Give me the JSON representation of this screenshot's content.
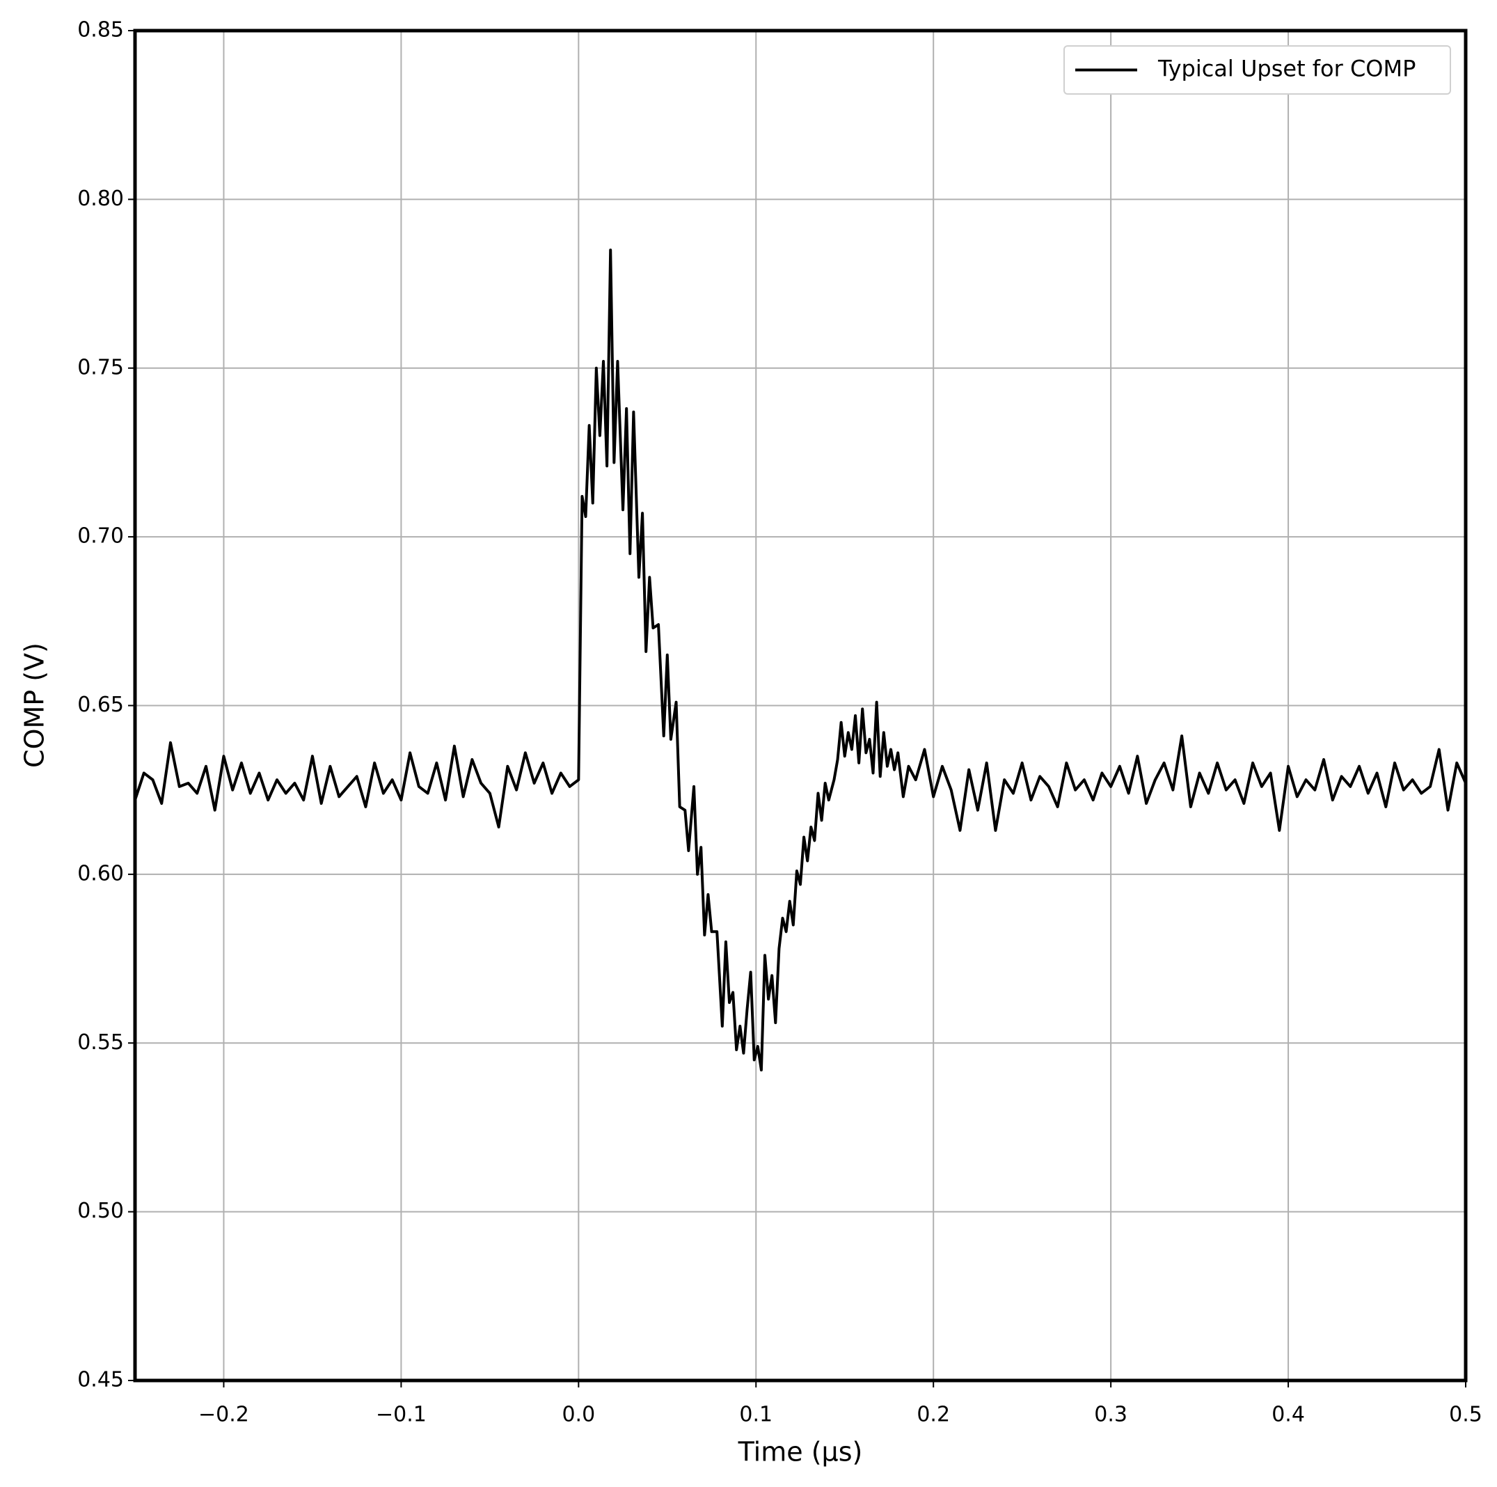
{
  "chart_data": {
    "type": "line",
    "xlabel": "Time (µs)",
    "ylabel": "COMP (V)",
    "xlim": [
      -0.25,
      0.5
    ],
    "xticks": [
      {
        "value": -0.2,
        "label": "−0.2"
      },
      {
        "value": -0.1,
        "label": "−0.1"
      },
      {
        "value": 0,
        "label": "0.0"
      },
      0.1,
      0.2,
      0.3,
      0.4,
      0.5
    ],
    "ylim": [
      0.45,
      0.85
    ],
    "yticks": [
      0.45,
      {
        "value": 0.5,
        "label": "0.50"
      },
      0.55,
      {
        "value": 0.6,
        "label": "0.60"
      },
      0.65,
      {
        "value": 0.7,
        "label": "0.70"
      },
      0.75,
      {
        "value": 0.8,
        "label": "0.80"
      },
      0.85
    ],
    "grid": true,
    "legend": "upper right",
    "x": [
      -0.25,
      -0.245,
      -0.24,
      -0.235,
      -0.23,
      -0.225,
      -0.22,
      -0.215,
      -0.21,
      -0.205,
      -0.2,
      -0.195,
      -0.19,
      -0.185,
      -0.18,
      -0.175,
      -0.17,
      -0.165,
      -0.16,
      -0.155,
      -0.15,
      -0.145,
      -0.14,
      -0.135,
      -0.13,
      -0.125,
      -0.12,
      -0.115,
      -0.11,
      -0.105,
      -0.1,
      -0.095,
      -0.09,
      -0.085,
      -0.08,
      -0.075,
      -0.07,
      -0.065,
      -0.06,
      -0.055,
      -0.05,
      -0.045,
      -0.04,
      -0.035,
      -0.03,
      -0.025,
      -0.02,
      -0.015,
      -0.01,
      -0.005,
      0,
      0.002,
      0.004,
      0.006,
      0.008,
      0.01,
      0.012,
      0.014,
      0.016,
      0.018,
      0.02,
      0.022,
      0.025,
      0.027,
      0.029,
      0.031,
      0.034,
      0.036,
      0.038,
      0.04,
      0.042,
      0.045,
      0.048,
      0.05,
      0.052,
      0.055,
      0.057,
      0.06,
      0.062,
      0.065,
      0.067,
      0.069,
      0.071,
      0.073,
      0.075,
      0.078,
      0.081,
      0.083,
      0.085,
      0.087,
      0.089,
      0.091,
      0.093,
      0.095,
      0.097,
      0.099,
      0.101,
      0.103,
      0.105,
      0.107,
      0.109,
      0.111,
      0.113,
      0.115,
      0.117,
      0.119,
      0.121,
      0.123,
      0.125,
      0.127,
      0.129,
      0.131,
      0.133,
      0.135,
      0.137,
      0.139,
      0.141,
      0.144,
      0.146,
      0.148,
      0.15,
      0.152,
      0.154,
      0.156,
      0.158,
      0.16,
      0.162,
      0.164,
      0.166,
      0.168,
      0.17,
      0.172,
      0.174,
      0.176,
      0.178,
      0.18,
      0.183,
      0.186,
      0.19,
      0.195,
      0.2,
      0.205,
      0.21,
      0.215,
      0.22,
      0.225,
      0.23,
      0.235,
      0.24,
      0.245,
      0.25,
      0.255,
      0.26,
      0.265,
      0.27,
      0.275,
      0.28,
      0.285,
      0.29,
      0.295,
      0.3,
      0.305,
      0.31,
      0.315,
      0.32,
      0.325,
      0.33,
      0.335,
      0.34,
      0.345,
      0.35,
      0.355,
      0.36,
      0.365,
      0.37,
      0.375,
      0.38,
      0.385,
      0.39,
      0.395,
      0.4,
      0.405,
      0.41,
      0.415,
      0.42,
      0.425,
      0.43,
      0.435,
      0.44,
      0.445,
      0.45,
      0.455,
      0.46,
      0.465,
      0.47,
      0.475,
      0.48,
      0.485,
      0.49,
      0.495,
      0.5
    ],
    "series": [
      {
        "name": "Typical Upset for COMP",
        "color": "#000000",
        "values": [
          0.622,
          0.63,
          0.628,
          0.621,
          0.639,
          0.626,
          0.627,
          0.624,
          0.632,
          0.619,
          0.635,
          0.625,
          0.633,
          0.624,
          0.63,
          0.622,
          0.628,
          0.624,
          0.627,
          0.622,
          0.635,
          0.621,
          0.632,
          0.623,
          0.626,
          0.629,
          0.62,
          0.633,
          0.624,
          0.628,
          0.622,
          0.636,
          0.626,
          0.624,
          0.633,
          0.622,
          0.638,
          0.623,
          0.634,
          0.627,
          0.624,
          0.614,
          0.632,
          0.625,
          0.636,
          0.627,
          0.633,
          0.624,
          0.63,
          0.626,
          0.628,
          0.712,
          0.706,
          0.733,
          0.71,
          0.75,
          0.73,
          0.752,
          0.721,
          0.785,
          0.722,
          0.752,
          0.708,
          0.738,
          0.695,
          0.737,
          0.688,
          0.707,
          0.666,
          0.688,
          0.673,
          0.674,
          0.641,
          0.665,
          0.64,
          0.651,
          0.62,
          0.619,
          0.607,
          0.626,
          0.6,
          0.608,
          0.582,
          0.594,
          0.583,
          0.583,
          0.555,
          0.58,
          0.562,
          0.565,
          0.548,
          0.555,
          0.547,
          0.56,
          0.571,
          0.545,
          0.549,
          0.542,
          0.576,
          0.563,
          0.57,
          0.556,
          0.578,
          0.587,
          0.583,
          0.592,
          0.585,
          0.601,
          0.597,
          0.611,
          0.604,
          0.614,
          0.61,
          0.624,
          0.616,
          0.627,
          0.622,
          0.628,
          0.634,
          0.645,
          0.635,
          0.642,
          0.637,
          0.647,
          0.633,
          0.649,
          0.636,
          0.64,
          0.63,
          0.651,
          0.629,
          0.642,
          0.632,
          0.637,
          0.631,
          0.636,
          0.623,
          0.632,
          0.628,
          0.637,
          0.623,
          0.632,
          0.625,
          0.613,
          0.631,
          0.619,
          0.633,
          0.613,
          0.628,
          0.624,
          0.633,
          0.622,
          0.629,
          0.626,
          0.62,
          0.633,
          0.625,
          0.628,
          0.622,
          0.63,
          0.626,
          0.632,
          0.624,
          0.635,
          0.621,
          0.628,
          0.633,
          0.625,
          0.641,
          0.62,
          0.63,
          0.624,
          0.633,
          0.625,
          0.628,
          0.621,
          0.633,
          0.626,
          0.63,
          0.613,
          0.632,
          0.623,
          0.628,
          0.625,
          0.634,
          0.622,
          0.629,
          0.626,
          0.632,
          0.624,
          0.63,
          0.62,
          0.633,
          0.625,
          0.628,
          0.624,
          0.626,
          0.637,
          0.619,
          0.633,
          0.627
        ]
      }
    ]
  }
}
